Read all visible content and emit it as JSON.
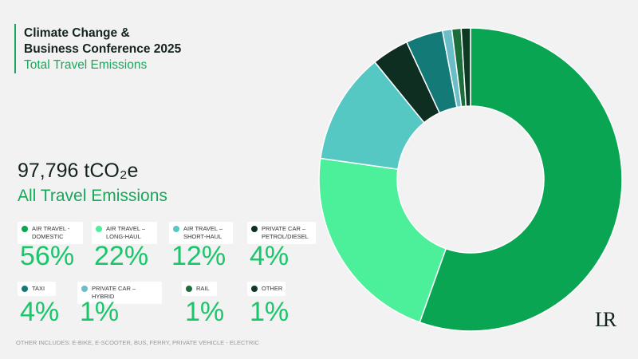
{
  "chart_data": {
    "type": "pie",
    "title": [
      "Climate Change &",
      "Business Conference 2025"
    ],
    "subtitle": "Total Travel Emissions",
    "total": "97,796 tCO₂e",
    "total_label": "All Travel Emissions",
    "categories": [
      "AIR TRAVEL - DOMESTIC",
      "AIR TRAVEL – LONG-HAUL",
      "AIR TRAVEL – SHORT-HAUL",
      "PRIVATE CAR – PETROL/DIESEL",
      "TAXI",
      "PRIVATE CAR – HYBRID",
      "RAIL",
      "OTHER"
    ],
    "values": [
      56,
      22,
      12,
      4,
      4,
      1,
      1,
      1
    ],
    "value_labels": [
      "56%",
      "22%",
      "12%",
      "4%",
      "4%",
      "1%",
      "1%",
      "1%"
    ],
    "colors": [
      "#0aa552",
      "#4cf09b",
      "#56c8c4",
      "#0f2e22",
      "#137a78",
      "#6bbdc8",
      "#1a6e3a",
      "#0c3a22"
    ],
    "note": "OTHER INCLUDES: E-BIKE, E-SCOOTER, BUS, FERRY, PRIVATE VEHICLE - ELECTRIC",
    "logo": "LR"
  }
}
